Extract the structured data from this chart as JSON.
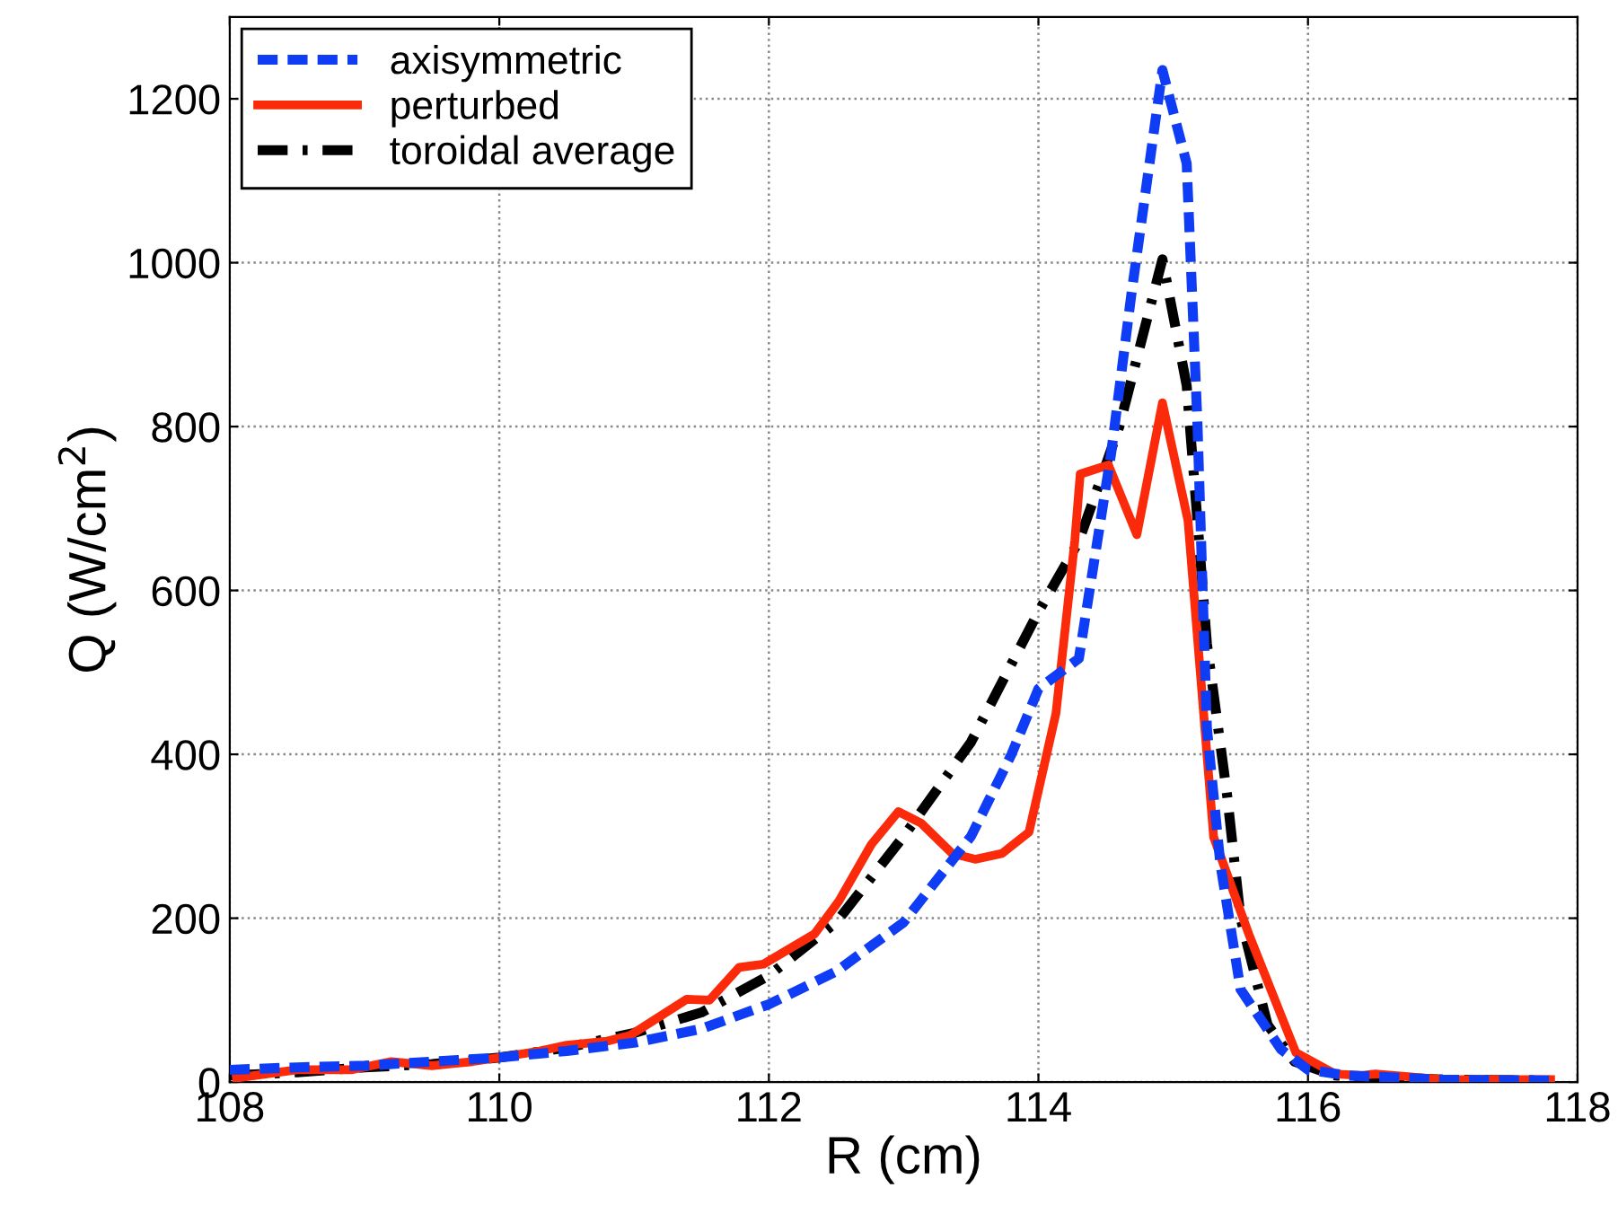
{
  "chart_data": {
    "type": "line",
    "xlabel": "R (cm)",
    "ylabel": "Q (W/cm$^{2}$)",
    "xlim": [
      108,
      118
    ],
    "ylim": [
      0,
      1300
    ],
    "xticks": [
      108,
      110,
      112,
      114,
      116,
      118
    ],
    "yticks": [
      0,
      200,
      400,
      600,
      800,
      1000,
      1200
    ],
    "grid": true,
    "legend": "top left",
    "series": [
      {
        "name": "axisymmetric",
        "color": "#0f3cf5",
        "line_style": "dashed",
        "x": [
          108.0,
          108.5,
          109.0,
          109.5,
          110.0,
          110.5,
          111.0,
          111.5,
          112.0,
          112.5,
          113.0,
          113.5,
          113.8,
          114.0,
          114.3,
          114.54,
          114.69,
          114.92,
          115.1,
          115.18,
          115.25,
          115.35,
          115.5,
          115.8,
          116.0,
          116.3,
          117.0,
          117.8
        ],
        "values": [
          15,
          18,
          20,
          25,
          30,
          38,
          48,
          65,
          95,
          135,
          195,
          300,
          400,
          480,
          517,
          768,
          962,
          1235,
          1121,
          803,
          432,
          266,
          113,
          40,
          15,
          8,
          3,
          2
        ]
      },
      {
        "name": "perturbed",
        "color": "#fa2a0a",
        "line_style": "solid",
        "x": [
          108.05,
          108.5,
          108.9,
          109.2,
          109.5,
          109.8,
          110.0,
          110.3,
          110.5,
          110.8,
          110.97,
          111.39,
          111.56,
          111.78,
          111.96,
          112.34,
          112.52,
          112.76,
          112.96,
          113.13,
          113.36,
          113.53,
          113.73,
          113.93,
          114.13,
          114.27,
          114.31,
          114.52,
          114.73,
          114.92,
          115.11,
          115.3,
          115.56,
          115.91,
          116.2,
          116.4,
          116.5,
          117.0,
          117.8
        ],
        "values": [
          5,
          15,
          15,
          25,
          20,
          25,
          30,
          38,
          45,
          50,
          57,
          101,
          100,
          140,
          144,
          181,
          221,
          290,
          330,
          316,
          279,
          272,
          279,
          305,
          450,
          661,
          742,
          753,
          668,
          829,
          685,
          299,
          181,
          36,
          10,
          8,
          10,
          3,
          3
        ]
      },
      {
        "name": "toroidal average",
        "color": "#000000",
        "line_style": "dashdot",
        "x": [
          108.0,
          108.5,
          109.0,
          109.5,
          110.0,
          110.5,
          111.0,
          111.5,
          112.0,
          112.5,
          113.0,
          113.5,
          114.0,
          114.3,
          114.6,
          114.92,
          115.1,
          115.18,
          115.25,
          115.4,
          115.5,
          115.7,
          115.9,
          116.2,
          117.0,
          117.8
        ],
        "values": [
          8,
          12,
          18,
          22,
          30,
          42,
          60,
          85,
          130,
          195,
          300,
          415,
          574,
          660,
          800,
          1004,
          850,
          685,
          535,
          350,
          200,
          70,
          25,
          8,
          3,
          2
        ]
      }
    ]
  }
}
